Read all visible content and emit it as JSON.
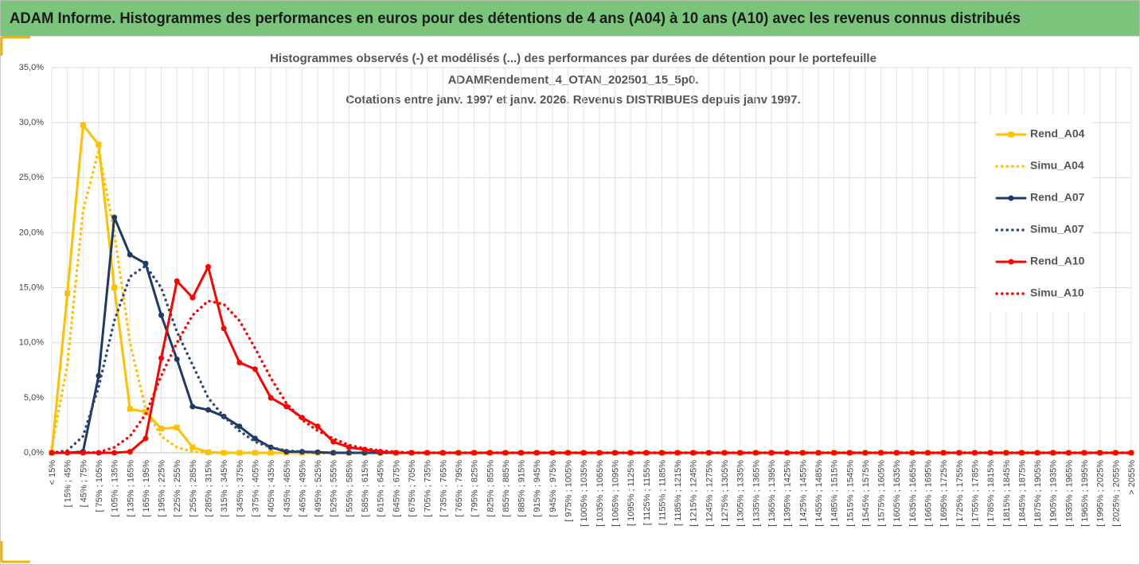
{
  "header_title": "ADAM Informe. Histogrammes des performances en euros pour des détentions de 4 ans (A04) à 10 ans (A10) avec les revenus connus distribués",
  "chart_data": {
    "type": "line",
    "title": [
      "Histogrammes observés (-) et modélisés (...) des performances par durées de détention pour le portefeuille",
      "ADAMRendement_4_OTAN_202501_15_5p0.",
      "Cotations entre janv. 1997 et janv. 2026. Revenus DISTRIBUES depuis janv 1997."
    ],
    "categories": [
      "< 15%",
      "[ 15% ; 45%",
      "[ 45% ; 75%",
      "[ 75% ; 105%",
      "[ 105% ; 135%",
      "[ 135% ; 165%",
      "[ 165% ; 195%",
      "[ 195% ; 225%",
      "[ 225% ; 255%",
      "[ 255% ; 285%",
      "[ 285% ; 315%",
      "[ 315% ; 345%",
      "[ 345% ; 375%",
      "[ 375% ; 405%",
      "[ 405% ; 435%",
      "[ 435% ; 465%",
      "[ 465% ; 495%",
      "[ 495% ; 525%",
      "[ 525% ; 555%",
      "[ 555% ; 585%",
      "[ 585% ; 615%",
      "[ 615% ; 645%",
      "[ 645% ; 675%",
      "[ 675% ; 705%",
      "[ 705% ; 735%",
      "[ 735% ; 765%",
      "[ 765% ; 795%",
      "[ 795% ; 825%",
      "[ 825% ; 855%",
      "[ 855% ; 885%",
      "[ 885% ; 915%",
      "[ 915% ; 945%",
      "[ 945% ; 975%",
      "[ 975% ; 1005%",
      "[ 1005% ; 1035%",
      "[ 1035% ; 1065%",
      "[ 1065% ; 1095%",
      "[ 1095% ; 1125%",
      "[ 1125% ; 1155%",
      "[ 1155% ; 1185%",
      "[ 1185% ; 1215%",
      "[ 1215% ; 1245%",
      "[ 1245% ; 1275%",
      "[ 1275% ; 1305%",
      "[ 1305% ; 1335%",
      "[ 1335% ; 1365%",
      "[ 1365% ; 1395%",
      "[ 1395% ; 1425%",
      "[ 1425% ; 1455%",
      "[ 1455% ; 1485%",
      "[ 1485% ; 1515%",
      "[ 1515% ; 1545%",
      "[ 1545% ; 1575%",
      "[ 1575% ; 1605%",
      "[ 1605% ; 1635%",
      "[ 1635% ; 1665%",
      "[ 1665% ; 1695%",
      "[ 1695% ; 1725%",
      "[ 1725% ; 1755%",
      "[ 1755% ; 1785%",
      "[ 1785% ; 1815%",
      "[ 1815% ; 1845%",
      "[ 1845% ; 1875%",
      "[ 1875% ; 1905%",
      "[ 1905% ; 1935%",
      "[ 1935% ; 1965%",
      "[ 1965% ; 1995%",
      "[ 1995% ; 2025%",
      "[ 2025% ; 2055%",
      "> 2055%"
    ],
    "series": [
      {
        "name": "Rend_A04",
        "color": "#ffc000",
        "style": "solid",
        "marker": "square",
        "values": [
          0,
          14.5,
          29.8,
          28,
          15,
          4,
          3.7,
          2.2,
          2.3,
          0.5,
          0.05,
          0,
          0,
          0,
          0,
          0,
          0,
          0,
          0,
          0,
          0,
          0,
          0,
          0,
          0,
          0,
          0,
          0,
          0,
          0,
          0,
          0,
          0,
          0,
          0,
          0,
          0,
          0,
          0,
          0,
          0,
          0,
          0,
          0,
          0,
          0,
          0,
          0,
          0,
          0,
          0,
          0,
          0,
          0,
          0,
          0,
          0,
          0,
          0,
          0,
          0,
          0,
          0,
          0,
          0,
          0,
          0,
          0,
          0,
          0
        ]
      },
      {
        "name": "Simu_A04",
        "color": "#ffc000",
        "style": "dotted",
        "values": [
          0.5,
          8,
          22,
          27.5,
          20,
          10,
          4,
          1.5,
          0.5,
          0.1,
          0,
          0,
          0,
          0,
          0,
          0,
          0,
          0,
          0,
          0,
          0,
          0,
          0,
          0,
          0,
          0,
          0,
          0,
          0,
          0,
          0,
          0,
          0,
          0,
          0,
          0,
          0,
          0,
          0,
          0,
          0,
          0,
          0,
          0,
          0,
          0,
          0,
          0,
          0,
          0,
          0,
          0,
          0,
          0,
          0,
          0,
          0,
          0,
          0,
          0,
          0,
          0,
          0,
          0,
          0,
          0,
          0,
          0,
          0,
          0
        ]
      },
      {
        "name": "Rend_A07",
        "color": "#1f3864",
        "style": "solid",
        "marker": "circle",
        "values": [
          0,
          0,
          0.1,
          7,
          21.4,
          18,
          17.2,
          12.5,
          8.5,
          4.2,
          3.9,
          3.3,
          2.4,
          1.3,
          0.5,
          0.1,
          0.1,
          0.05,
          0,
          0,
          0,
          0,
          0,
          0,
          0,
          0,
          0,
          0,
          0,
          0,
          0,
          0,
          0,
          0,
          0,
          0,
          0,
          0,
          0,
          0,
          0,
          0,
          0,
          0,
          0,
          0,
          0,
          0,
          0,
          0,
          0,
          0,
          0,
          0,
          0,
          0,
          0,
          0,
          0,
          0,
          0,
          0,
          0,
          0,
          0,
          0,
          0,
          0,
          0,
          0
        ]
      },
      {
        "name": "Simu_A07",
        "color": "#2b4a7a",
        "style": "dotted",
        "values": [
          0,
          0.2,
          1.5,
          6,
          12,
          16,
          17,
          15,
          11,
          8,
          5,
          3.3,
          2,
          1,
          0.5,
          0.2,
          0.1,
          0,
          0,
          0,
          0,
          0,
          0,
          0,
          0,
          0,
          0,
          0,
          0,
          0,
          0,
          0,
          0,
          0,
          0,
          0,
          0,
          0,
          0,
          0,
          0,
          0,
          0,
          0,
          0,
          0,
          0,
          0,
          0,
          0,
          0,
          0,
          0,
          0,
          0,
          0,
          0,
          0,
          0,
          0,
          0,
          0,
          0,
          0,
          0,
          0,
          0,
          0,
          0,
          0
        ]
      },
      {
        "name": "Rend_A10",
        "color": "#ff0000",
        "style": "solid",
        "marker": "circle",
        "values": [
          0,
          0,
          0,
          0,
          0,
          0.1,
          1.3,
          8.6,
          15.6,
          14.1,
          16.9,
          11.3,
          8.2,
          7.6,
          5,
          4.2,
          3.2,
          2.4,
          1,
          0.5,
          0.3,
          0.1,
          0,
          0,
          0,
          0,
          0,
          0,
          0,
          0,
          0,
          0,
          0,
          0,
          0,
          0,
          0,
          0,
          0,
          0,
          0,
          0,
          0,
          0,
          0,
          0,
          0,
          0,
          0,
          0,
          0,
          0,
          0,
          0,
          0,
          0,
          0,
          0,
          0,
          0,
          0,
          0,
          0,
          0,
          0,
          0,
          0,
          0,
          0,
          0
        ]
      },
      {
        "name": "Simu_A10",
        "color": "#ff0000",
        "style": "dotted",
        "values": [
          0,
          0,
          0,
          0.05,
          0.5,
          1.5,
          3.5,
          7,
          10,
          12.5,
          13.8,
          13.5,
          12,
          9.5,
          6.8,
          4.5,
          3,
          2,
          1.3,
          0.7,
          0.4,
          0.2,
          0.1,
          0,
          0,
          0,
          0,
          0,
          0,
          0,
          0,
          0,
          0,
          0,
          0,
          0,
          0,
          0,
          0,
          0,
          0,
          0,
          0,
          0,
          0,
          0,
          0,
          0,
          0,
          0,
          0,
          0,
          0,
          0,
          0,
          0,
          0,
          0,
          0,
          0,
          0,
          0,
          0,
          0,
          0,
          0,
          0,
          0,
          0,
          0
        ]
      }
    ],
    "ylim": [
      0,
      35
    ],
    "yticks": [
      {
        "value": 0,
        "label": "0,0%"
      },
      {
        "value": 5,
        "label": "5,0%"
      },
      {
        "value": 10,
        "label": "10,0%"
      },
      {
        "value": 15,
        "label": "15,0%"
      },
      {
        "value": 20,
        "label": "20,0%"
      },
      {
        "value": 25,
        "label": "25,0%"
      },
      {
        "value": 30,
        "label": "30,0%"
      },
      {
        "value": 35,
        "label": "35,0%"
      }
    ],
    "grid": true,
    "legend": "right"
  }
}
